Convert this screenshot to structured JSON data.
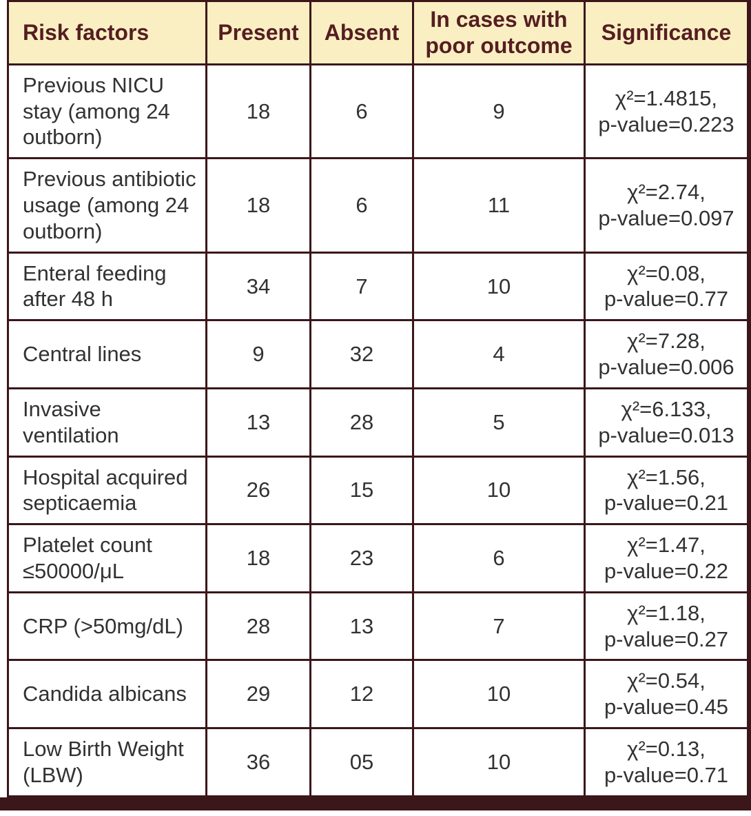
{
  "colors": {
    "header_bg": "#FAEFC2",
    "header_text": "#551E22",
    "border": "#3B161A",
    "body_text": "#323232",
    "cell_bg": "#FFFFFF"
  },
  "table": {
    "columns": [
      "Risk factors",
      "Present",
      "Absent",
      "In cases with poor outcome",
      "Significance"
    ],
    "rows": [
      {
        "risk_factor": "Previous NICU stay (among 24 outborn)",
        "present": "18",
        "absent": "6",
        "poor_outcome": "9",
        "chi2": "1.4815",
        "p_value": "0.223",
        "significance_line1": "χ²=1.4815,",
        "significance_line2": "p-value=0.223"
      },
      {
        "risk_factor": "Previous antibiotic usage (among 24 outborn)",
        "present": "18",
        "absent": "6",
        "poor_outcome": "11",
        "chi2": "2.74",
        "p_value": "0.097",
        "significance_line1": "χ²=2.74,",
        "significance_line2": "p-value=0.097"
      },
      {
        "risk_factor": "Enteral feeding after 48 h",
        "present": "34",
        "absent": "7",
        "poor_outcome": "10",
        "chi2": "0.08",
        "p_value": "0.77",
        "significance_line1": "χ²=0.08,",
        "significance_line2": "p-value=0.77"
      },
      {
        "risk_factor": "Central lines",
        "present": "9",
        "absent": "32",
        "poor_outcome": "4",
        "chi2": "7.28",
        "p_value": "0.006",
        "significance_line1": "χ²=7.28,",
        "significance_line2": "p-value=0.006"
      },
      {
        "risk_factor": "Invasive ventilation",
        "present": "13",
        "absent": "28",
        "poor_outcome": "5",
        "chi2": "6.133",
        "p_value": "0.013",
        "significance_line1": "χ²=6.133,",
        "significance_line2": "p-value=0.013"
      },
      {
        "risk_factor": "Hospital acquired septicaemia",
        "present": "26",
        "absent": "15",
        "poor_outcome": "10",
        "chi2": "1.56",
        "p_value": "0.21",
        "significance_line1": "χ²=1.56,",
        "significance_line2": "p-value=0.21"
      },
      {
        "risk_factor": "Platelet count ≤50000/μL",
        "present": "18",
        "absent": "23",
        "poor_outcome": "6",
        "chi2": "1.47",
        "p_value": "0.22",
        "significance_line1": "χ²=1.47,",
        "significance_line2": "p-value=0.22"
      },
      {
        "risk_factor": "CRP (>50mg/dL)",
        "present": "28",
        "absent": "13",
        "poor_outcome": "7",
        "chi2": "1.18",
        "p_value": "0.27",
        "significance_line1": "χ²=1.18,",
        "significance_line2": "p-value=0.27"
      },
      {
        "risk_factor": "Candida albicans",
        "present": "29",
        "absent": "12",
        "poor_outcome": "10",
        "chi2": "0.54",
        "p_value": "0.45",
        "significance_line1": "χ²=0.54,",
        "significance_line2": "p-value=0.45"
      },
      {
        "risk_factor": "Low Birth Weight (LBW)",
        "present": "36",
        "absent": "05",
        "poor_outcome": "10",
        "chi2": "0.13",
        "p_value": "0.71",
        "significance_line1": "χ²=0.13,",
        "significance_line2": "p-value=0.71"
      }
    ]
  }
}
